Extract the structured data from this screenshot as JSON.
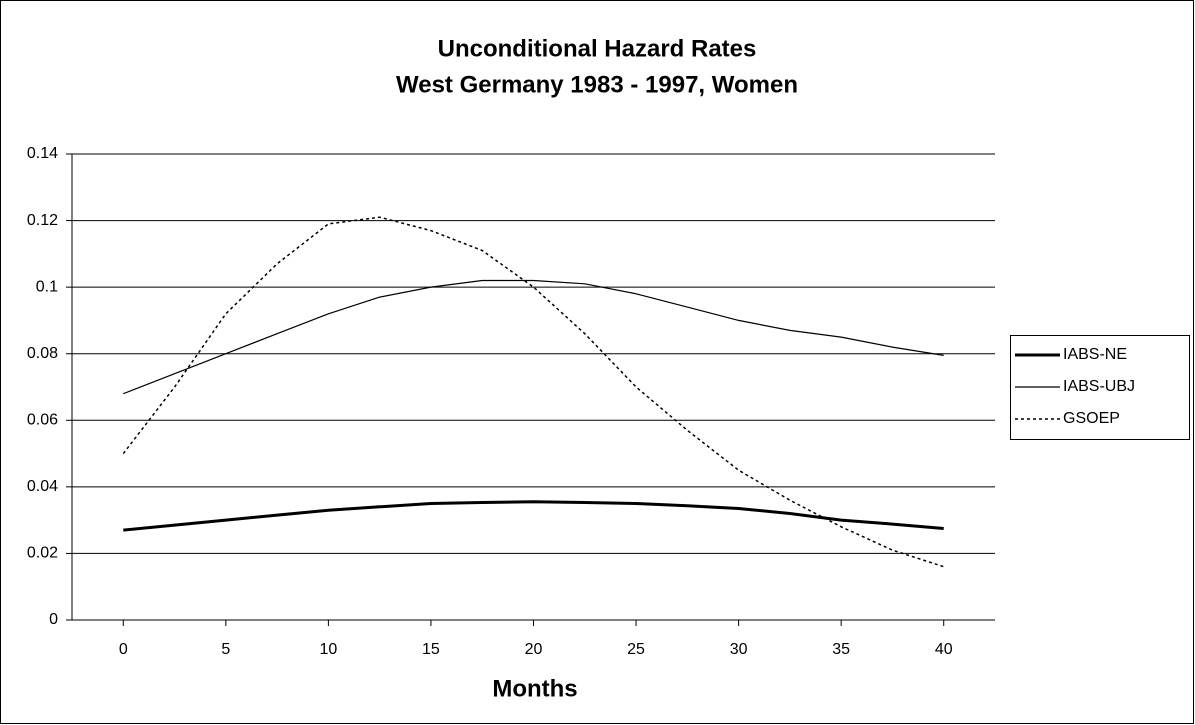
{
  "chart_data": {
    "type": "line",
    "title": "Unconditional Hazard Rates",
    "subtitle": "West Germany 1983 - 1997, Women",
    "x_label": "Months",
    "x": [
      0,
      2.5,
      5,
      7.5,
      10,
      12.5,
      15,
      17.5,
      20,
      22.5,
      25,
      27.5,
      30,
      32.5,
      35,
      37.5,
      40
    ],
    "series": [
      {
        "name": "IABS-NE",
        "color": "#000000",
        "line_style": "thick",
        "values": [
          0.027,
          0.0285,
          0.03,
          0.0315,
          0.033,
          0.034,
          0.035,
          0.0353,
          0.0355,
          0.0353,
          0.035,
          0.0343,
          0.0335,
          0.032,
          0.03,
          0.0288,
          0.0275
        ]
      },
      {
        "name": "IABS-UBJ",
        "color": "#000000",
        "line_style": "thin",
        "values": [
          0.068,
          0.074,
          0.08,
          0.086,
          0.092,
          0.097,
          0.1,
          0.102,
          0.102,
          0.101,
          0.098,
          0.094,
          0.09,
          0.087,
          0.085,
          0.082,
          0.0795
        ]
      },
      {
        "name": "GSOEP",
        "color": "#000000",
        "line_style": "dotted",
        "values": [
          0.05,
          0.07,
          0.092,
          0.107,
          0.119,
          0.121,
          0.117,
          0.111,
          0.1,
          0.086,
          0.07,
          0.057,
          0.045,
          0.036,
          0.028,
          0.021,
          0.016
        ]
      }
    ],
    "xlim": [
      -2.5,
      42.5
    ],
    "xticks": [
      0,
      5,
      10,
      15,
      20,
      25,
      30,
      35,
      40
    ],
    "ylim": [
      0,
      0.14
    ],
    "yticks": [
      0,
      0.02,
      0.04,
      0.06,
      0.08,
      0.1,
      0.12,
      0.14
    ],
    "grid": true,
    "legend": "right"
  }
}
